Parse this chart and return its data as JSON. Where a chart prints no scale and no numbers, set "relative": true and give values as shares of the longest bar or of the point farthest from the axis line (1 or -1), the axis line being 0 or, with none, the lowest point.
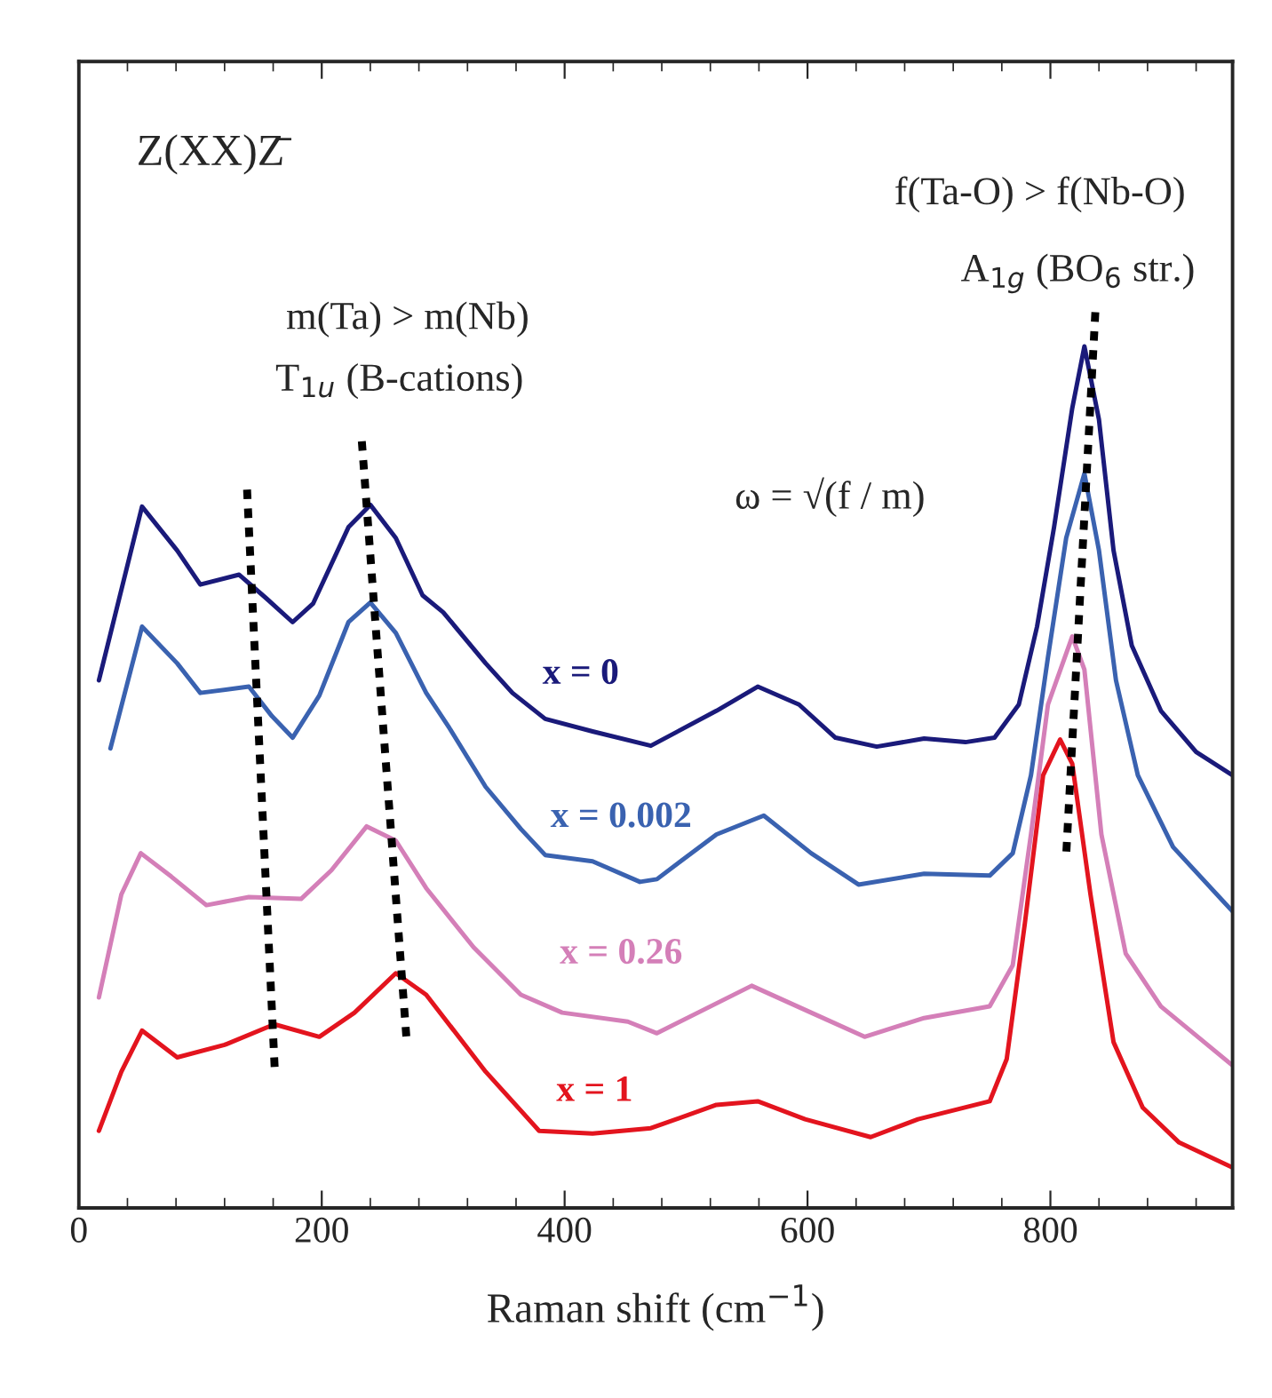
{
  "chart_data": {
    "type": "line",
    "relative": true,
    "xlabel": "Raman shift (cm$^{−1}$)",
    "xlim": [
      0,
      950
    ],
    "xticks": [
      0,
      200,
      400,
      600,
      800
    ],
    "grid": false,
    "legend": false,
    "marker": "none",
    "annotations": [
      "Z(XX)Z̄",
      "m(Ta) > m(Nb)",
      "T$_{1u}$ (B-cations)",
      "ω = √(f / m)",
      "f(Ta-O) > f(Nb-O)",
      "A$_{1g}$ (BO$_{6}$ str.)"
    ],
    "series": [
      {
        "name": "x = 0",
        "color": "#1a1a7a",
        "line_style": "solid",
        "x": [
          16.5,
          52,
          81,
          100,
          132,
          154,
          176,
          193,
          222,
          240,
          261,
          283,
          300,
          335,
          357,
          384,
          423,
          471,
          525,
          559,
          593,
          623,
          657,
          696,
          730,
          754,
          774,
          789,
          803,
          818,
          828,
          840,
          852,
          867,
          891,
          920,
          950
        ],
        "values": [
          0.589,
          0.783,
          0.734,
          0.696,
          0.707,
          0.681,
          0.654,
          0.675,
          0.76,
          0.785,
          0.748,
          0.684,
          0.665,
          0.608,
          0.575,
          0.546,
          0.532,
          0.516,
          0.555,
          0.582,
          0.562,
          0.525,
          0.515,
          0.524,
          0.52,
          0.525,
          0.562,
          0.649,
          0.76,
          0.893,
          0.962,
          0.88,
          0.734,
          0.628,
          0.555,
          0.509,
          0.483
        ]
      },
      {
        "name": "x = 0.002",
        "color": "#3a62b0",
        "line_style": "solid",
        "x": [
          26,
          52,
          81,
          100,
          140,
          159,
          176,
          198,
          222,
          240,
          261,
          286,
          305,
          335,
          364,
          384,
          423,
          462,
          476,
          525,
          564,
          603,
          642,
          696,
          750,
          769,
          784,
          798,
          813,
          828,
          840,
          854,
          872,
          901,
          950
        ],
        "values": [
          0.513,
          0.649,
          0.608,
          0.575,
          0.582,
          0.549,
          0.525,
          0.572,
          0.654,
          0.676,
          0.642,
          0.575,
          0.536,
          0.47,
          0.423,
          0.394,
          0.387,
          0.364,
          0.367,
          0.417,
          0.438,
          0.396,
          0.361,
          0.373,
          0.371,
          0.396,
          0.483,
          0.615,
          0.748,
          0.82,
          0.734,
          0.589,
          0.483,
          0.403,
          0.331
        ]
      },
      {
        "name": "x = 0.26",
        "color": "#d47fb8",
        "line_style": "solid",
        "x": [
          16.5,
          35,
          51,
          76,
          105,
          140,
          183,
          208,
          237,
          261,
          286,
          325,
          364,
          398,
          452,
          476,
          554,
          603,
          647,
          696,
          750,
          769,
          784,
          798,
          818,
          828,
          842,
          862,
          891,
          950
        ],
        "values": [
          0.235,
          0.35,
          0.396,
          0.37,
          0.338,
          0.347,
          0.345,
          0.377,
          0.426,
          0.41,
          0.357,
          0.291,
          0.238,
          0.218,
          0.208,
          0.195,
          0.248,
          0.218,
          0.191,
          0.212,
          0.225,
          0.271,
          0.417,
          0.562,
          0.638,
          0.601,
          0.417,
          0.284,
          0.225,
          0.159
        ]
      },
      {
        "name": "x = 1",
        "color": "#e3141e",
        "line_style": "solid",
        "x": [
          16.5,
          35,
          52,
          81,
          120,
          161,
          198,
          227,
          261,
          286,
          335,
          379,
          423,
          471,
          525,
          559,
          598,
          652,
          691,
          750,
          764,
          779,
          794,
          808,
          818,
          833,
          852,
          876,
          906,
          950
        ],
        "values": [
          0.086,
          0.152,
          0.198,
          0.168,
          0.182,
          0.205,
          0.191,
          0.218,
          0.262,
          0.238,
          0.152,
          0.086,
          0.083,
          0.089,
          0.115,
          0.119,
          0.099,
          0.079,
          0.099,
          0.119,
          0.166,
          0.318,
          0.483,
          0.523,
          0.496,
          0.35,
          0.185,
          0.112,
          0.073,
          0.045
        ]
      },
      {
        "color": "#000000",
        "line_style": "dotted",
        "x": [
          138.5,
          161.5
        ],
        "values": [
          0.802,
          0.149
        ]
      },
      {
        "color": "#000000",
        "line_style": "dotted",
        "x": [
          233,
          270
        ],
        "values": [
          0.856,
          0.185
        ]
      },
      {
        "color": "#000000",
        "line_style": "dotted",
        "x": [
          837,
          813
        ],
        "values": [
          1.0,
          0.394
        ]
      }
    ]
  }
}
